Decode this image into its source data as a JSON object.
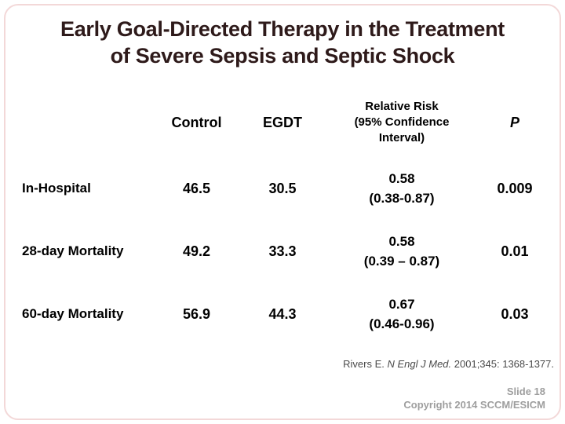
{
  "slide": {
    "title_lines": [
      "Early Goal-Directed Therapy in the Treatment",
      "of Severe Sepsis and Septic Shock"
    ],
    "table": {
      "columns": {
        "control": "Control",
        "egdt": "EGDT",
        "rr_lines": [
          "Relative Risk",
          "(95% Confidence",
          "Interval)"
        ],
        "p": "P"
      },
      "rows": [
        {
          "label": "In-Hospital",
          "control": "46.5",
          "egdt": "30.5",
          "rr": "0.58",
          "ci": "(0.38-0.87)",
          "p": "0.009"
        },
        {
          "label": "28-day Mortality",
          "control": "49.2",
          "egdt": "33.3",
          "rr": "0.58",
          "ci": "(0.39 – 0.87)",
          "p": "0.01"
        },
        {
          "label": "60-day Mortality",
          "control": "56.9",
          "egdt": "44.3",
          "rr": "0.67",
          "ci": "(0.46-0.96)",
          "p": "0.03"
        }
      ]
    },
    "citation": {
      "prefix": "Rivers E. ",
      "journal": "N Engl J Med.",
      "suffix": " 2001;345: 1368-1377."
    },
    "footer": {
      "slide_number": "Slide 18",
      "copyright": "Copyright 2014 SCCM/ESICM"
    }
  },
  "colors": {
    "title": "#2e1a1a",
    "table_text": "#000000",
    "citation": "#4a4a4a",
    "footer": "#9e9e9e",
    "frame": "#f3d8d8"
  }
}
